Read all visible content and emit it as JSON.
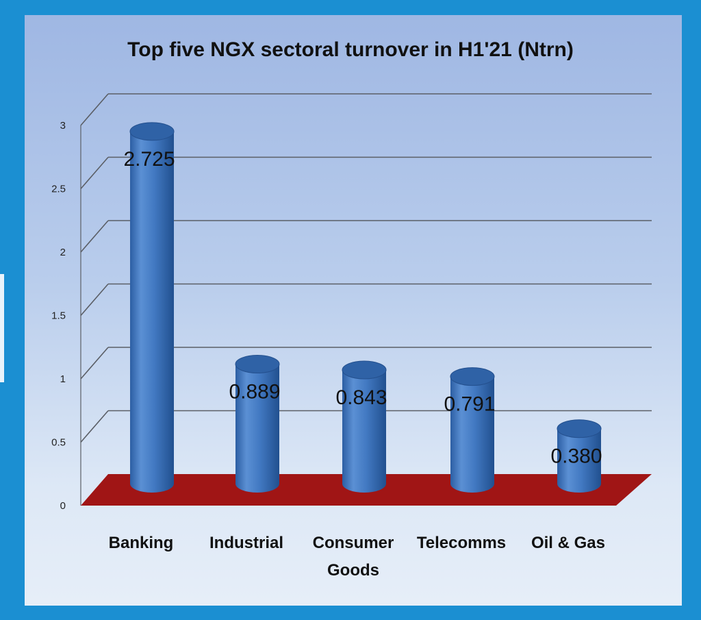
{
  "chart_data": {
    "type": "bar",
    "title": "Top five NGX sectoral turnover in H1'21 (Ntrn)",
    "categories": [
      [
        "Banking"
      ],
      [
        "Industrial"
      ],
      [
        "Consumer",
        "Goods"
      ],
      [
        "Telecomms"
      ],
      [
        "Oil & Gas"
      ]
    ],
    "values": [
      2.725,
      0.889,
      0.843,
      0.791,
      0.38
    ],
    "data_labels": [
      "2.725",
      "0.889",
      "0.843",
      "0.791",
      "0.380"
    ],
    "ylim": [
      0,
      3
    ],
    "yticks": [
      "0",
      "0.5",
      "1",
      "1.5",
      "2",
      "2.5",
      "3"
    ],
    "grid": true,
    "colors": {
      "bar": "#3d75bd",
      "bar_top": "#2f62a6",
      "floor": "#a01515",
      "grid": "#5b5f66"
    }
  }
}
